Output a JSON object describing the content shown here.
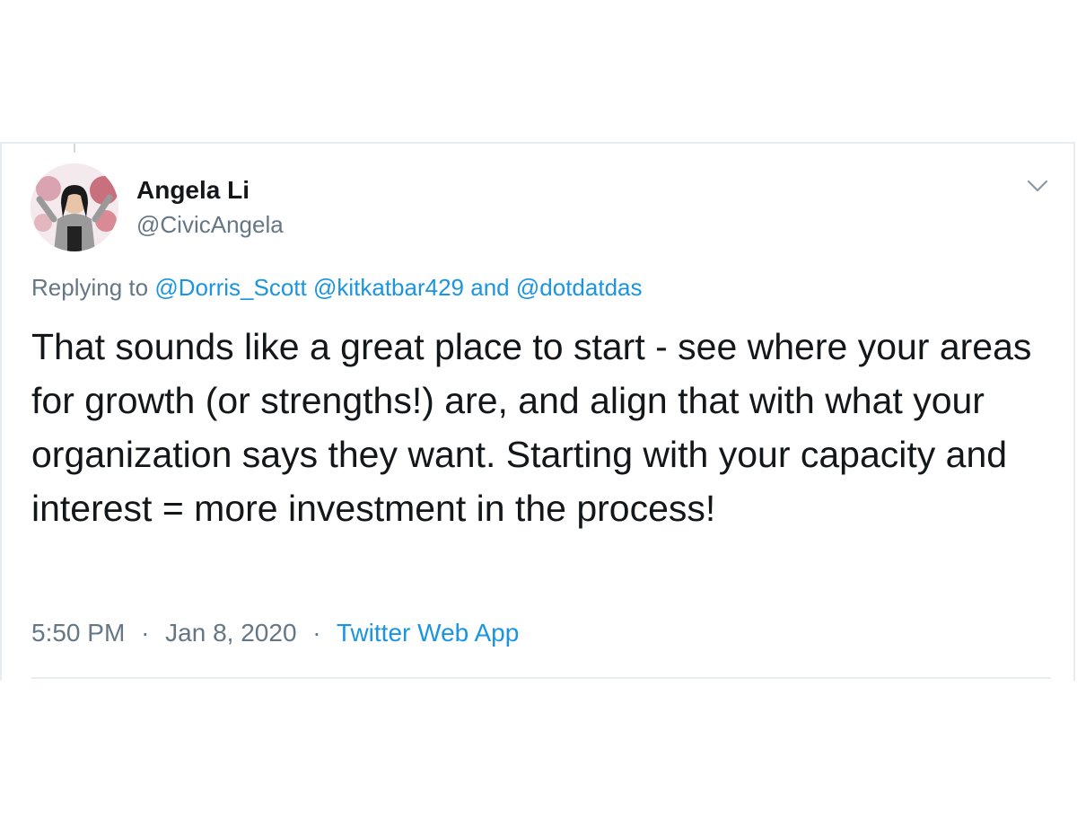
{
  "author": {
    "name": "Angela Li",
    "handle": "@CivicAngela"
  },
  "reply": {
    "prefix": "Replying to",
    "mentions": [
      "@Dorris_Scott",
      "@kitkatbar429",
      "@dotdatdas"
    ],
    "conjunction": "and"
  },
  "tweet": {
    "text": "That sounds like a great place to start - see where your areas for growth (or strengths!) are, and align that with what your organization says they want. Starting with your capacity and interest = more investment in the process!"
  },
  "meta": {
    "time": "5:50 PM",
    "separator": "·",
    "date": "Jan 8, 2020",
    "source": "Twitter Web App"
  },
  "icons": {
    "menu": "chevron-down-icon",
    "avatar": "profile-photo"
  },
  "colors": {
    "text": "#14171a",
    "secondary": "#657786",
    "link": "#1b95e0",
    "border": "#e6ecf0"
  }
}
